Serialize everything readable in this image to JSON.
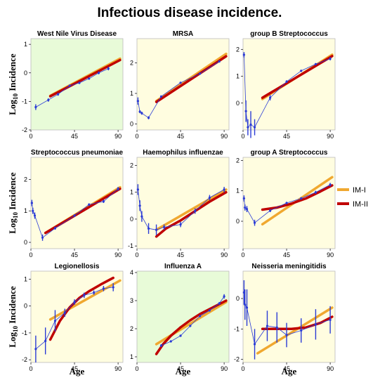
{
  "title": "Infectious disease incidence.",
  "ylabel_prefix": "Log",
  "ylabel_sub": "10",
  "ylabel_suffix": " Incidence",
  "xlabel": "Age",
  "colors": {
    "im1": "#f0a830",
    "im2": "#c00000",
    "data": "#2a3bd6",
    "bg_yellow": "#fffde0",
    "bg_green": "#e8fbd8"
  },
  "legend": [
    {
      "name": "IM-I",
      "color": "#f0a830"
    },
    {
      "name": "IM-II",
      "color": "#c00000"
    }
  ],
  "chart_data": [
    {
      "type": "line",
      "title": "West Nile Virus Disease",
      "bg": "green",
      "xlim": [
        0,
        95
      ],
      "ylim": [
        -2,
        1.2
      ],
      "xticks": [
        0,
        45,
        90
      ],
      "yticks": [
        -2,
        -1,
        0,
        1
      ],
      "data": {
        "x": [
          5,
          18,
          28,
          40,
          50,
          60,
          70,
          80
        ],
        "y": [
          -1.2,
          -0.95,
          -0.75,
          -0.45,
          -0.35,
          -0.2,
          0,
          0.15
        ],
        "err": [
          0.1,
          0.06,
          0.05,
          0.04,
          0.04,
          0.04,
          0.05,
          0.06
        ]
      },
      "im1": {
        "x": [
          20,
          92
        ],
        "y": [
          -0.8,
          0.5
        ]
      },
      "im2": {
        "x": [
          20,
          92
        ],
        "y": [
          -0.82,
          0.45
        ]
      }
    },
    {
      "type": "line",
      "title": "MRSA",
      "bg": "yellow",
      "xlim": [
        0,
        95
      ],
      "ylim": [
        -0.2,
        2.8
      ],
      "xticks": [
        0,
        45,
        90
      ],
      "yticks": [
        0,
        1,
        2
      ],
      "data": {
        "x": [
          1,
          3,
          5,
          12,
          25,
          45,
          65,
          85
        ],
        "y": [
          0.75,
          0.4,
          0.35,
          0.2,
          0.9,
          1.35,
          1.65,
          2.05
        ],
        "err": [
          0.12,
          0.05,
          0.05,
          0.05,
          0.03,
          0.03,
          0.03,
          0.03
        ]
      },
      "im1": {
        "x": [
          20,
          92
        ],
        "y": [
          0.75,
          2.3
        ]
      },
      "im2": {
        "x": [
          20,
          92
        ],
        "y": [
          0.72,
          2.22
        ]
      }
    },
    {
      "type": "line",
      "title": "group B Streptococcus",
      "bg": "yellow",
      "xlim": [
        0,
        95
      ],
      "ylim": [
        -1,
        2.4
      ],
      "xticks": [
        0,
        45,
        90
      ],
      "yticks": [
        0,
        1,
        2
      ],
      "data": {
        "x": [
          1,
          3,
          5,
          8,
          12,
          28,
          45,
          60,
          75,
          90
        ],
        "y": [
          1.8,
          -0.3,
          -0.9,
          -0.8,
          -0.9,
          0.2,
          0.8,
          1.2,
          1.45,
          1.65
        ],
        "err": [
          0.1,
          0.4,
          0.3,
          0.5,
          0.3,
          0.1,
          0.05,
          0.04,
          0.04,
          0.06
        ]
      },
      "im1": {
        "x": [
          20,
          92
        ],
        "y": [
          0.15,
          1.8
        ]
      },
      "im2": {
        "x": [
          20,
          92
        ],
        "y": [
          0.2,
          1.75
        ]
      }
    },
    {
      "type": "line",
      "title": "Streptococcus pneumoniae",
      "bg": "yellow",
      "xlim": [
        0,
        95
      ],
      "ylim": [
        -0.2,
        2.7
      ],
      "xticks": [
        0,
        45,
        90
      ],
      "yticks": [
        0,
        1,
        2
      ],
      "data": {
        "x": [
          1,
          2,
          4,
          12,
          25,
          45,
          60,
          75,
          90
        ],
        "y": [
          1.25,
          1.0,
          0.85,
          0.15,
          0.45,
          0.85,
          1.2,
          1.3,
          1.7
        ],
        "err": [
          0.1,
          0.1,
          0.1,
          0.1,
          0.05,
          0.04,
          0.04,
          0.05,
          0.06
        ]
      },
      "im1": {
        "x": [
          15,
          92
        ],
        "y": [
          0.3,
          1.75
        ]
      },
      "im2": {
        "x": [
          15,
          92
        ],
        "y": [
          0.3,
          1.7
        ]
      }
    },
    {
      "type": "line",
      "title": "Haemophilus influenzae",
      "bg": "yellow",
      "xlim": [
        0,
        95
      ],
      "ylim": [
        -1.1,
        2.3
      ],
      "xticks": [
        0,
        45,
        90
      ],
      "yticks": [
        -1,
        0,
        1,
        2
      ],
      "data": {
        "x": [
          1,
          3,
          5,
          12,
          20,
          28,
          45,
          60,
          75,
          90
        ],
        "y": [
          1.1,
          0.5,
          0.1,
          -0.35,
          -0.4,
          -0.3,
          -0.2,
          0.3,
          0.8,
          1.1
        ],
        "err": [
          0.2,
          0.2,
          0.2,
          0.2,
          0.2,
          0.1,
          0.1,
          0.1,
          0.1,
          0.1
        ]
      },
      "im1": {
        "x": [
          20,
          92
        ],
        "y": [
          -0.4,
          1.1
        ]
      },
      "im2": {
        "x": [
          20,
          30,
          45,
          60,
          75,
          92
        ],
        "y": [
          -0.65,
          -0.35,
          -0.05,
          0.3,
          0.65,
          1.0
        ]
      }
    },
    {
      "type": "line",
      "title": "group A Streptococcus",
      "bg": "yellow",
      "xlim": [
        0,
        95
      ],
      "ylim": [
        -0.9,
        2.1
      ],
      "xticks": [
        0,
        45,
        90
      ],
      "yticks": [
        0,
        1,
        2
      ],
      "data": {
        "x": [
          1,
          2,
          4,
          12,
          28,
          45,
          60,
          75,
          90
        ],
        "y": [
          0.75,
          0.45,
          0.4,
          -0.05,
          0.35,
          0.6,
          0.75,
          0.95,
          1.2
        ],
        "err": [
          0.1,
          0.1,
          0.1,
          0.1,
          0.05,
          0.04,
          0.04,
          0.05,
          0.06
        ]
      },
      "im1": {
        "x": [
          20,
          92
        ],
        "y": [
          -0.1,
          1.45
        ]
      },
      "im2": {
        "x": [
          20,
          35,
          50,
          65,
          80,
          92
        ],
        "y": [
          0.38,
          0.45,
          0.58,
          0.75,
          0.98,
          1.18
        ]
      }
    },
    {
      "type": "line",
      "title": "Legionellosis",
      "bg": "yellow",
      "xlim": [
        0,
        95
      ],
      "ylim": [
        -2.1,
        1.3
      ],
      "xticks": [
        0,
        45,
        90
      ],
      "yticks": [
        -2,
        -1,
        0,
        1
      ],
      "data": {
        "x": [
          5,
          15,
          25,
          35,
          45,
          55,
          65,
          75,
          85
        ],
        "y": [
          -1.6,
          -1.3,
          -0.55,
          -0.25,
          0.15,
          0.4,
          0.5,
          0.65,
          0.7
        ],
        "err": [
          0.5,
          0.5,
          0.4,
          0.15,
          0.1,
          0.1,
          0.08,
          0.1,
          0.15
        ]
      },
      "im1": {
        "x": [
          20,
          92
        ],
        "y": [
          -0.5,
          0.95
        ]
      },
      "im2": {
        "x": [
          20,
          30,
          40,
          50,
          60,
          72,
          85
        ],
        "y": [
          -1.25,
          -0.55,
          -0.05,
          0.3,
          0.55,
          0.8,
          1.05
        ]
      }
    },
    {
      "type": "line",
      "title": "Influenza A",
      "bg": "green",
      "xlim": [
        0,
        95
      ],
      "ylim": [
        0.8,
        4.05
      ],
      "xticks": [
        0,
        45,
        90
      ],
      "yticks": [
        1,
        2,
        3,
        4
      ],
      "data": {
        "x": [
          25,
          35,
          45,
          55,
          65,
          75,
          85,
          90
        ],
        "y": [
          1.4,
          1.55,
          1.75,
          2.1,
          2.45,
          2.65,
          2.9,
          3.15
        ],
        "err": [
          0.05,
          0.04,
          0.04,
          0.04,
          0.04,
          0.04,
          0.05,
          0.08
        ]
      },
      "im1": {
        "x": [
          20,
          92
        ],
        "y": [
          1.45,
          2.95
        ]
      },
      "im2": {
        "x": [
          20,
          27,
          35,
          45,
          55,
          65,
          75,
          92
        ],
        "y": [
          1.1,
          1.45,
          1.75,
          2.05,
          2.3,
          2.52,
          2.7,
          3.0
        ]
      }
    },
    {
      "type": "line",
      "title": "Neisseria meningitidis",
      "bg": "yellow",
      "xlim": [
        0,
        95
      ],
      "ylim": [
        -2.1,
        0.9
      ],
      "xticks": [
        0,
        45,
        90
      ],
      "yticks": [
        -2,
        -1,
        0
      ],
      "data": {
        "x": [
          1,
          2,
          4,
          12,
          25,
          35,
          45,
          60,
          75,
          90
        ],
        "y": [
          0.2,
          -0.2,
          -0.3,
          -1.5,
          -0.9,
          -0.95,
          -1.2,
          -1.05,
          -0.85,
          -0.7
        ],
        "err": [
          0.4,
          0.5,
          0.6,
          0.5,
          0.5,
          0.5,
          0.4,
          0.4,
          0.5,
          0.45
        ]
      },
      "im1": {
        "x": [
          15,
          92
        ],
        "y": [
          -1.8,
          -0.3
        ]
      },
      "im2": {
        "x": [
          20,
          35,
          50,
          65,
          80,
          92
        ],
        "y": [
          -1.0,
          -1.0,
          -1.0,
          -0.95,
          -0.8,
          -0.6
        ]
      }
    }
  ]
}
